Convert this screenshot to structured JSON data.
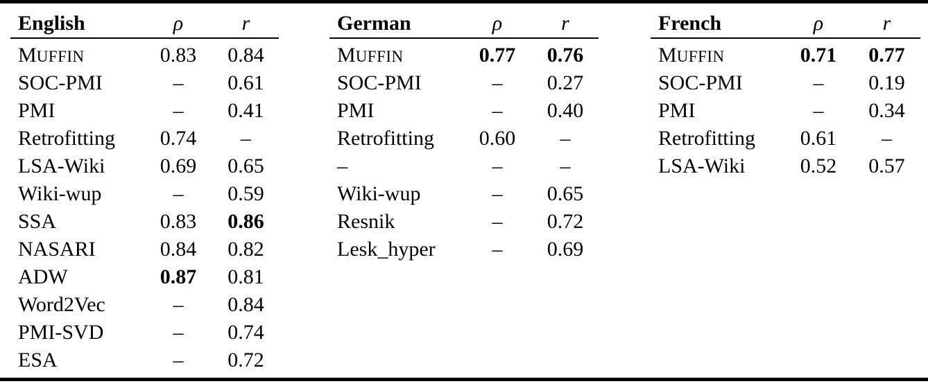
{
  "page": {
    "background_color": "#ffffff",
    "text_color": "#000000",
    "rule_color": "#000000"
  },
  "columns": {
    "rho_label": "ρ",
    "r_label": "r"
  },
  "tables": [
    {
      "language": "English",
      "rows": [
        {
          "method": "MUFFIN",
          "smallcaps": true,
          "rho": "0.83",
          "r": "0.84"
        },
        {
          "method": "SOC-PMI",
          "rho": "–",
          "r": "0.61"
        },
        {
          "method": "PMI",
          "rho": "–",
          "r": "0.41"
        },
        {
          "method": "Retrofitting",
          "rho": "0.74",
          "r": "–"
        },
        {
          "method": "LSA-Wiki",
          "rho": "0.69",
          "r": "0.65"
        },
        {
          "method": "Wiki-wup",
          "rho": "–",
          "r": "0.59"
        },
        {
          "method": "SSA",
          "rho": "0.83",
          "r": "0.86",
          "r_bold": true
        },
        {
          "method": "NASARI",
          "rho": "0.84",
          "r": "0.82"
        },
        {
          "method": "ADW",
          "rho": "0.87",
          "r": "0.81",
          "rho_bold": true
        },
        {
          "method": "Word2Vec",
          "rho": "–",
          "r": "0.84"
        },
        {
          "method": "PMI-SVD",
          "rho": "–",
          "r": "0.74"
        },
        {
          "method": "ESA",
          "rho": "–",
          "r": "0.72"
        }
      ]
    },
    {
      "language": "German",
      "rows": [
        {
          "method": "MUFFIN",
          "smallcaps": true,
          "rho": "0.77",
          "r": "0.76",
          "rho_bold": true,
          "r_bold": true
        },
        {
          "method": "SOC-PMI",
          "rho": "–",
          "r": "0.27"
        },
        {
          "method": "PMI",
          "rho": "–",
          "r": "0.40"
        },
        {
          "method": "Retrofitting",
          "rho": "0.60",
          "r": "–"
        },
        {
          "method": "–",
          "rho": "–",
          "r": "–"
        },
        {
          "method": "Wiki-wup",
          "rho": "–",
          "r": "0.65"
        },
        {
          "method": "Resnik",
          "rho": "–",
          "r": "0.72"
        },
        {
          "method": "Lesk_hyper",
          "rho": "–",
          "r": "0.69"
        }
      ]
    },
    {
      "language": "French",
      "rows": [
        {
          "method": "MUFFIN",
          "smallcaps": true,
          "rho": "0.71",
          "r": "0.77",
          "rho_bold": true,
          "r_bold": true
        },
        {
          "method": "SOC-PMI",
          "rho": "–",
          "r": "0.19"
        },
        {
          "method": "PMI",
          "rho": "–",
          "r": "0.34"
        },
        {
          "method": "Retrofitting",
          "rho": "0.61",
          "r": "–"
        },
        {
          "method": "LSA-Wiki",
          "rho": "0.52",
          "r": "0.57"
        }
      ]
    }
  ]
}
